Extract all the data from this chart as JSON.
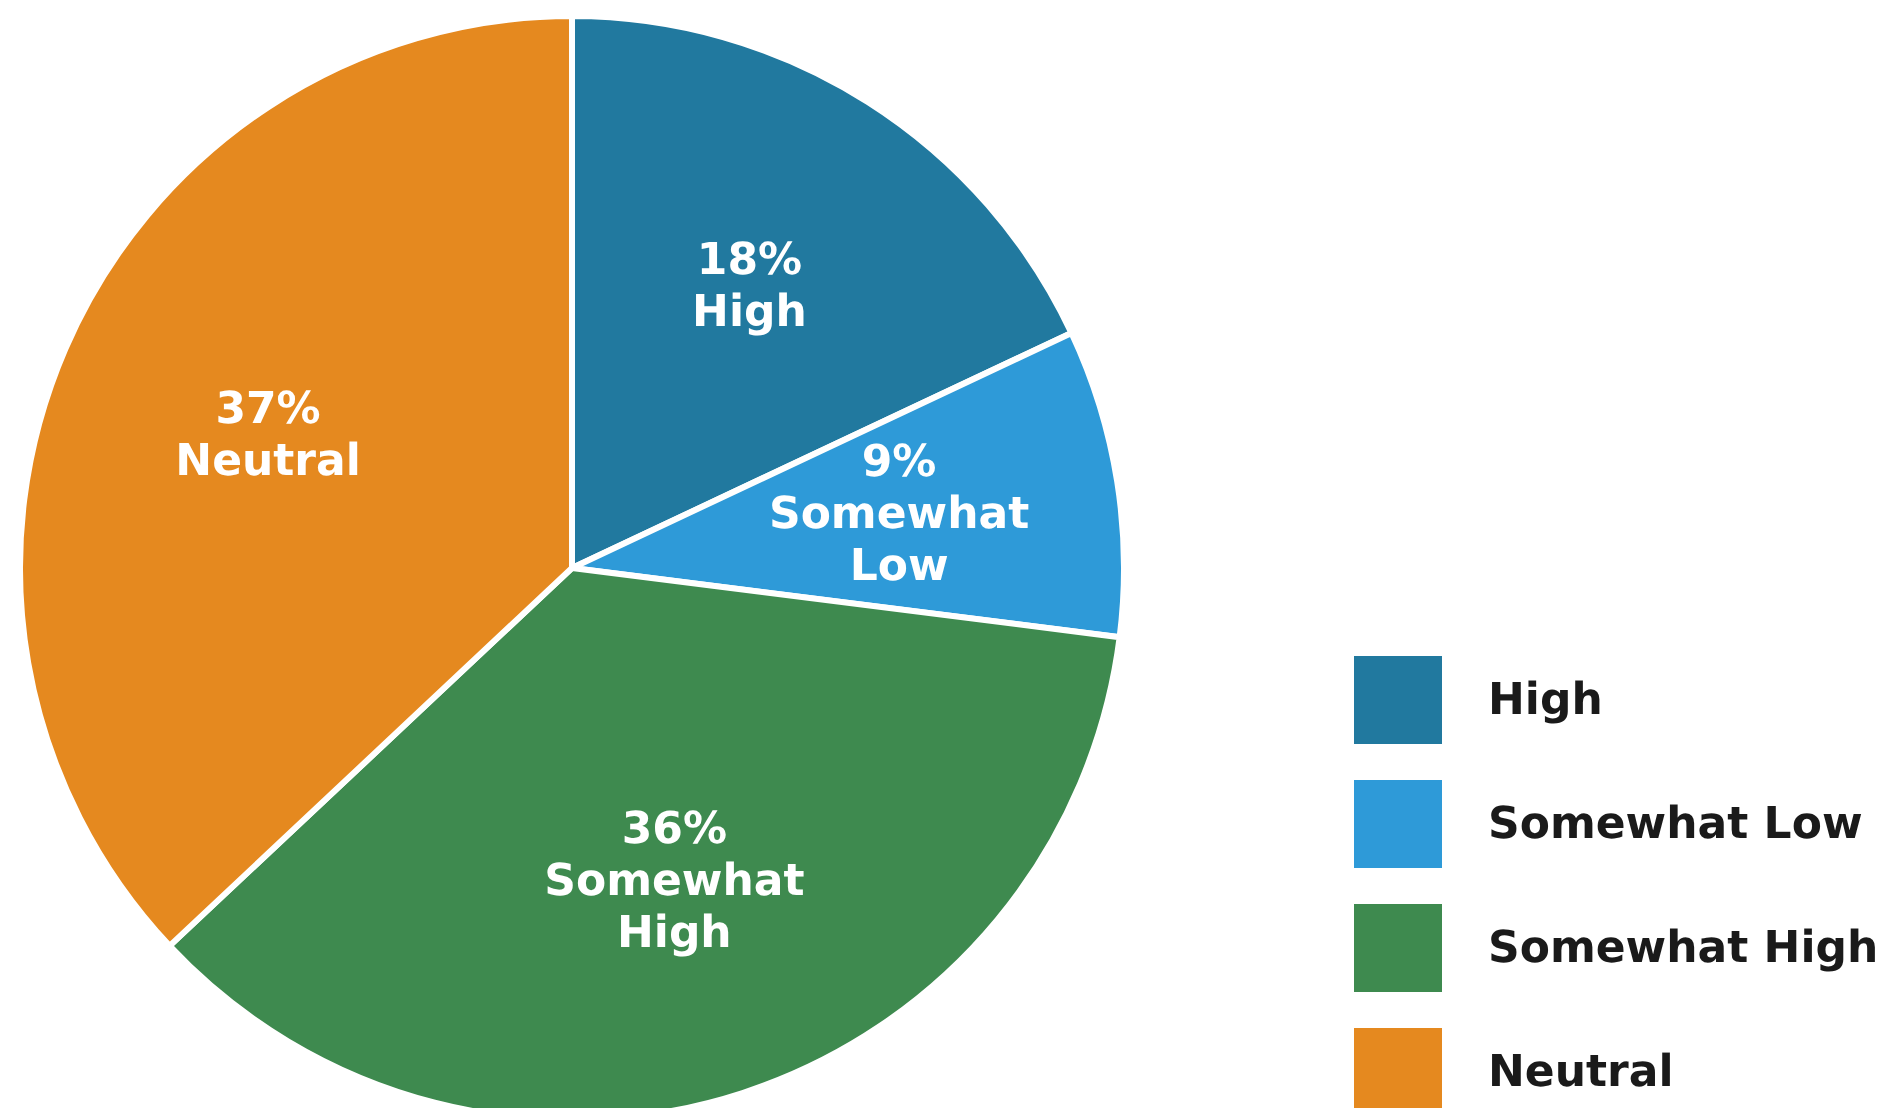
{
  "chart_data": {
    "type": "pie",
    "categories": [
      "High",
      "Somewhat Low",
      "Somewhat High",
      "Neutral"
    ],
    "values": [
      18,
      9,
      36,
      37
    ],
    "colors": [
      "#21799f",
      "#2e9ad8",
      "#3e8a4f",
      "#e5891f"
    ],
    "value_labels": [
      "18%",
      "9%",
      "36%",
      "37%"
    ],
    "legend": "bottom right"
  }
}
